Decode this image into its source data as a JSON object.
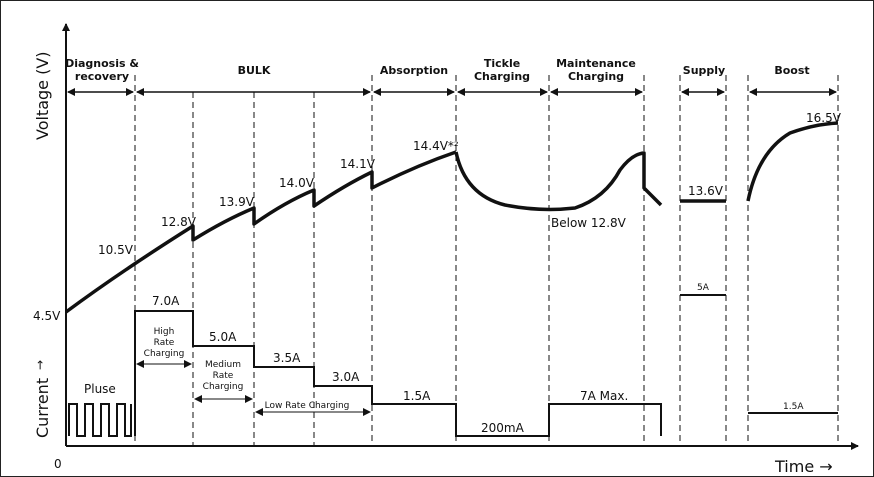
{
  "axes": {
    "y_voltage": "Voltage (V)",
    "y_current": "Current",
    "current_arrow": "→",
    "origin": "0",
    "x_time": "Time →"
  },
  "phases": [
    "Diagnosis &",
    "recovery",
    "BULK",
    "Absorption",
    "Tickle",
    "Charging",
    "Maintenance",
    "Charging",
    "Supply",
    "Boost"
  ],
  "voltage_labels": {
    "v1": "4.5V",
    "v2": "10.5V",
    "v3": "12.8V",
    "v4": "13.9V",
    "v5": "14.0V",
    "v6": "14.1V",
    "v7": "14.4V*²",
    "v8": "Below 12.8V",
    "v9": "13.6V",
    "v10": "16.5V"
  },
  "current_labels": {
    "c1": "7.0A",
    "c2": "5.0A",
    "c3": "3.5A",
    "c4": "3.0A",
    "c5": "1.5A",
    "c6": "200mA",
    "c7": "7A Max.",
    "c8": "5A",
    "c9": "1.5A",
    "pulse": "Pluse"
  },
  "rate_labels": {
    "high": [
      "High",
      "Rate",
      "Charging"
    ],
    "medium": [
      "Medium",
      "Rate",
      "Charging"
    ],
    "low": "Low Rate Charging"
  }
}
